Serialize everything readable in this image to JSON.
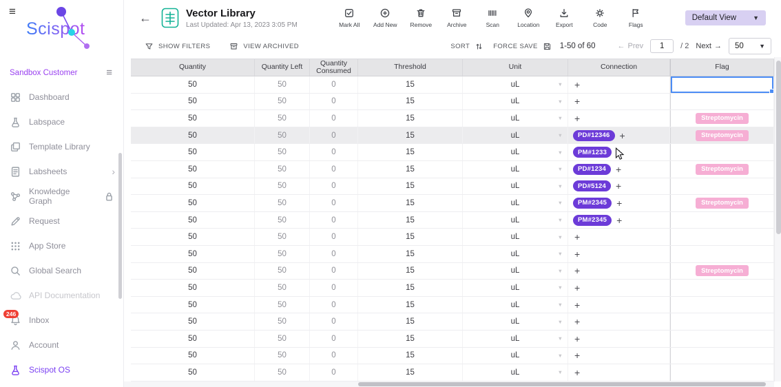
{
  "brand": {
    "logo": "Scispot",
    "workspace": "Sandbox Customer"
  },
  "colors": {
    "accent_purple": "#7a3ff2",
    "connection_chip": "#6c3bd8",
    "flag_chip_pink": "#f6aed4",
    "badge_red": "#ef3f34",
    "doc_icon_teal": "#12b296",
    "selection_blue": "#4b8cf5",
    "view_pill_lavender": "#d8d0f2"
  },
  "sidebar": {
    "items": [
      {
        "label": "Dashboard",
        "icon": "dashboard"
      },
      {
        "label": "Labspace",
        "icon": "flask"
      },
      {
        "label": "Template Library",
        "icon": "template"
      },
      {
        "label": "Labsheets",
        "icon": "sheet",
        "chevron": true
      },
      {
        "label": "Knowledge Graph",
        "icon": "graph",
        "lock": true
      },
      {
        "label": "Request",
        "icon": "pencil"
      },
      {
        "label": "App Store",
        "icon": "apps"
      },
      {
        "label": "Global Search",
        "icon": "search"
      },
      {
        "label": "API Documentation",
        "icon": "api",
        "muted": true
      },
      {
        "label": "Inbox",
        "icon": "bell",
        "badge": "246"
      },
      {
        "label": "Account",
        "icon": "person"
      },
      {
        "label": "Scispot OS",
        "icon": "flask",
        "accent": true
      }
    ]
  },
  "header": {
    "back": "←",
    "title": "Vector Library",
    "subtitle": "Last Updated: Apr 13, 2023 3:05 PM",
    "actions": [
      {
        "label": "Mark All",
        "icon": "mark-all"
      },
      {
        "label": "Add New",
        "icon": "add-new"
      },
      {
        "label": "Remove",
        "icon": "remove"
      },
      {
        "label": "Archive",
        "icon": "archive"
      },
      {
        "label": "Scan",
        "icon": "scan"
      },
      {
        "label": "Location",
        "icon": "location"
      },
      {
        "label": "Export",
        "icon": "export"
      },
      {
        "label": "Code",
        "icon": "code"
      },
      {
        "label": "Flags",
        "icon": "flags"
      }
    ],
    "view_select": "Default View"
  },
  "toolbar": {
    "show_filters": "SHOW FILTERS",
    "view_archived": "VIEW ARCHIVED",
    "sort_label": "SORT",
    "force_save_label": "FORCE SAVE",
    "range": "1-50 of 60",
    "prev": "Prev",
    "prev_arrow": "←",
    "page_value": "1",
    "page_total": "/ 2",
    "next": "Next",
    "next_arrow": "→",
    "page_size": "50"
  },
  "table": {
    "columns": [
      "Quantity",
      "Quantity Left",
      "Quantity Consumed",
      "Threshold",
      "Unit",
      "Connection",
      "Flag"
    ],
    "rows": [
      {
        "qty": "50",
        "left": "50",
        "used": "0",
        "thr": "15",
        "unit": "uL",
        "conn": "",
        "flag": "",
        "sel": true
      },
      {
        "qty": "50",
        "left": "50",
        "used": "0",
        "thr": "15",
        "unit": "uL",
        "conn": "",
        "flag": ""
      },
      {
        "qty": "50",
        "left": "50",
        "used": "0",
        "thr": "15",
        "unit": "uL",
        "conn": "",
        "flag": "Streptomycin"
      },
      {
        "qty": "50",
        "left": "50",
        "used": "0",
        "thr": "15",
        "unit": "uL",
        "conn": "PD#12346",
        "flag": "Streptomycin",
        "hl": true
      },
      {
        "qty": "50",
        "left": "50",
        "used": "0",
        "thr": "15",
        "unit": "uL",
        "conn": "PM#1233",
        "flag": ""
      },
      {
        "qty": "50",
        "left": "50",
        "used": "0",
        "thr": "15",
        "unit": "uL",
        "conn": "PD#1234",
        "flag": "Streptomycin"
      },
      {
        "qty": "50",
        "left": "50",
        "used": "0",
        "thr": "15",
        "unit": "uL",
        "conn": "PD#5124",
        "flag": ""
      },
      {
        "qty": "50",
        "left": "50",
        "used": "0",
        "thr": "15",
        "unit": "uL",
        "conn": "PM#2345",
        "flag": "Streptomycin"
      },
      {
        "qty": "50",
        "left": "50",
        "used": "0",
        "thr": "15",
        "unit": "uL",
        "conn": "PM#2345",
        "flag": ""
      },
      {
        "qty": "50",
        "left": "50",
        "used": "0",
        "thr": "15",
        "unit": "uL",
        "conn": "",
        "flag": ""
      },
      {
        "qty": "50",
        "left": "50",
        "used": "0",
        "thr": "15",
        "unit": "uL",
        "conn": "",
        "flag": ""
      },
      {
        "qty": "50",
        "left": "50",
        "used": "0",
        "thr": "15",
        "unit": "uL",
        "conn": "",
        "flag": "Streptomycin"
      },
      {
        "qty": "50",
        "left": "50",
        "used": "0",
        "thr": "15",
        "unit": "uL",
        "conn": "",
        "flag": ""
      },
      {
        "qty": "50",
        "left": "50",
        "used": "0",
        "thr": "15",
        "unit": "uL",
        "conn": "",
        "flag": ""
      },
      {
        "qty": "50",
        "left": "50",
        "used": "0",
        "thr": "15",
        "unit": "uL",
        "conn": "",
        "flag": ""
      },
      {
        "qty": "50",
        "left": "50",
        "used": "0",
        "thr": "15",
        "unit": "uL",
        "conn": "",
        "flag": ""
      },
      {
        "qty": "50",
        "left": "50",
        "used": "0",
        "thr": "15",
        "unit": "uL",
        "conn": "",
        "flag": ""
      },
      {
        "qty": "50",
        "left": "50",
        "used": "0",
        "thr": "15",
        "unit": "uL",
        "conn": "",
        "flag": ""
      }
    ]
  }
}
